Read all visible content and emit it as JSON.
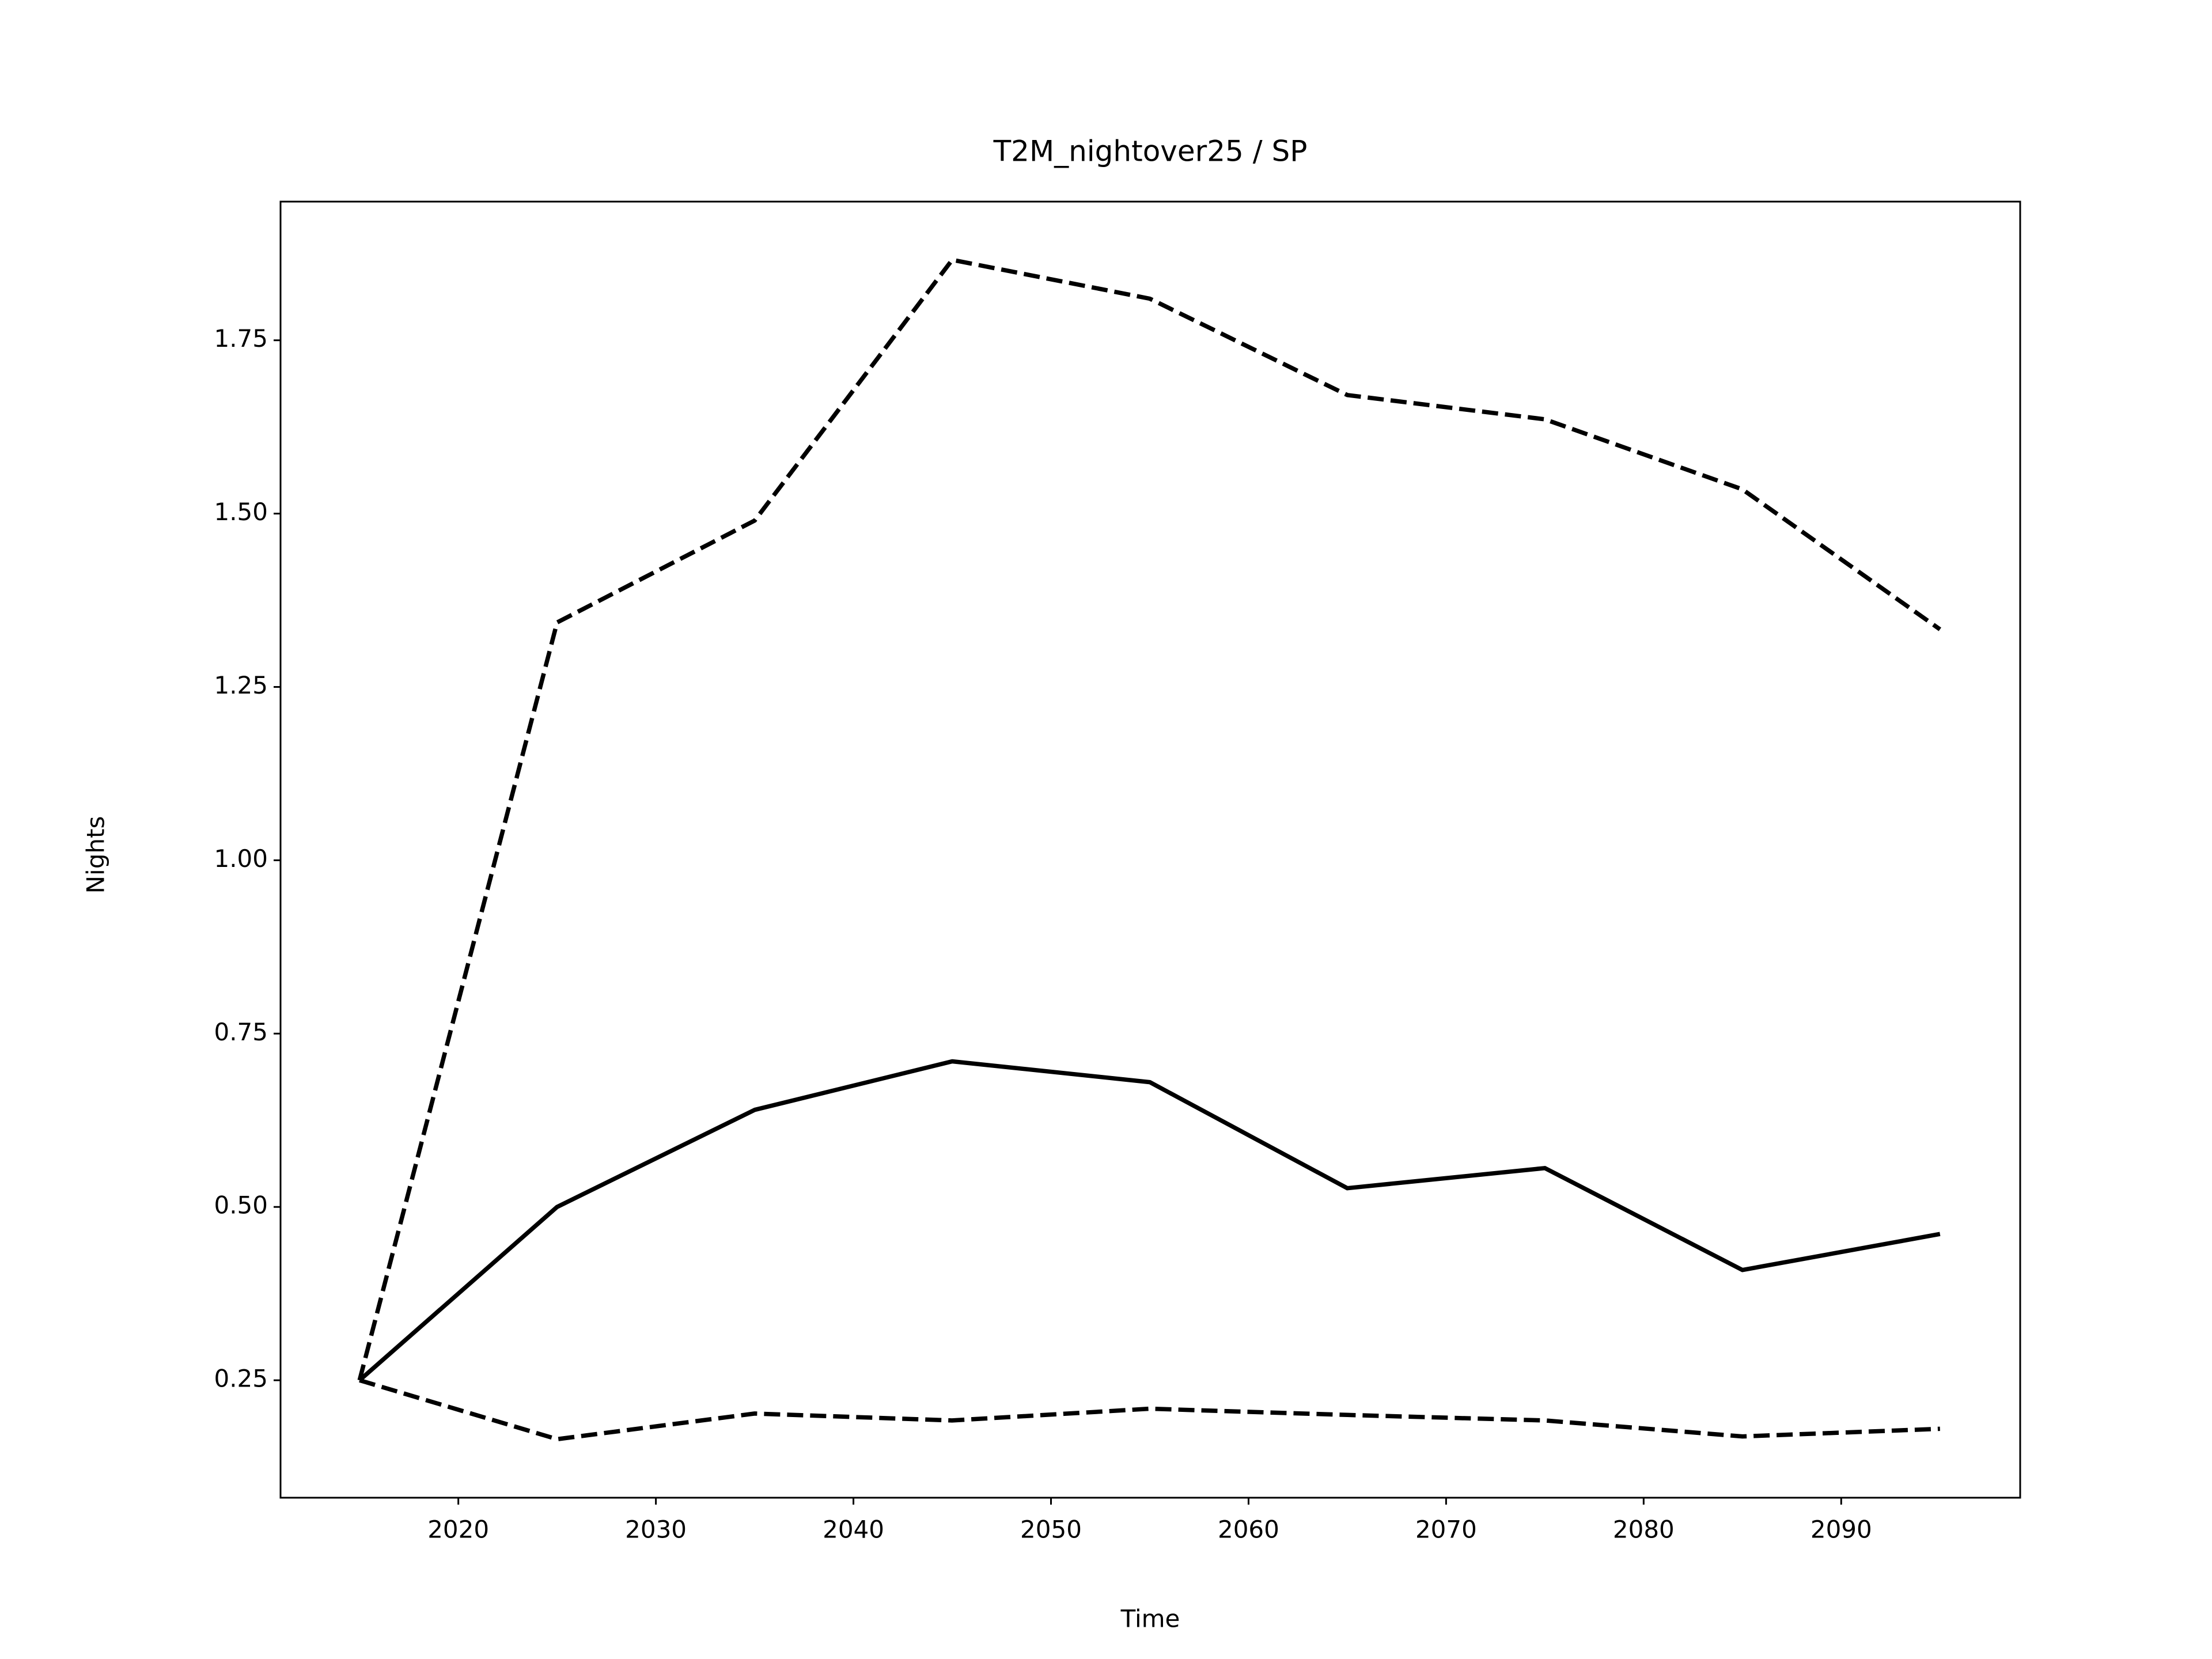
{
  "chart_data": {
    "type": "line",
    "title": "T2M_nightover25 / SP",
    "xlabel": "Time",
    "ylabel": "Nights",
    "x": [
      2015,
      2025,
      2035,
      2045,
      2055,
      2065,
      2075,
      2085,
      2095
    ],
    "series": [
      {
        "color": "#000000",
        "linestyle": "solid",
        "values": [
          0.25,
          0.5,
          0.64,
          0.71,
          0.68,
          0.527,
          0.556,
          0.409,
          0.461
        ]
      },
      {
        "color": "#000000",
        "linestyle": "dashed",
        "values": [
          0.25,
          1.343,
          1.49,
          1.866,
          1.81,
          1.671,
          1.636,
          1.535,
          1.333
        ]
      },
      {
        "color": "#000000",
        "linestyle": "dashed",
        "values": [
          0.25,
          0.165,
          0.202,
          0.192,
          0.209,
          0.2,
          0.192,
          0.169,
          0.18
        ]
      }
    ],
    "xlim": [
      2011.0,
      2099.06
    ],
    "ylim": [
      0.0806,
      1.95
    ],
    "xticks": [
      2020,
      2030,
      2040,
      2050,
      2060,
      2070,
      2080,
      2090
    ],
    "yticks": [
      0.25,
      {
        "value": 0.5,
        "label": "0.50"
      },
      0.75,
      {
        "value": 1,
        "label": "1.00"
      },
      1.25,
      {
        "value": 1.5,
        "label": "1.50"
      },
      1.75
    ],
    "grid": false
  }
}
